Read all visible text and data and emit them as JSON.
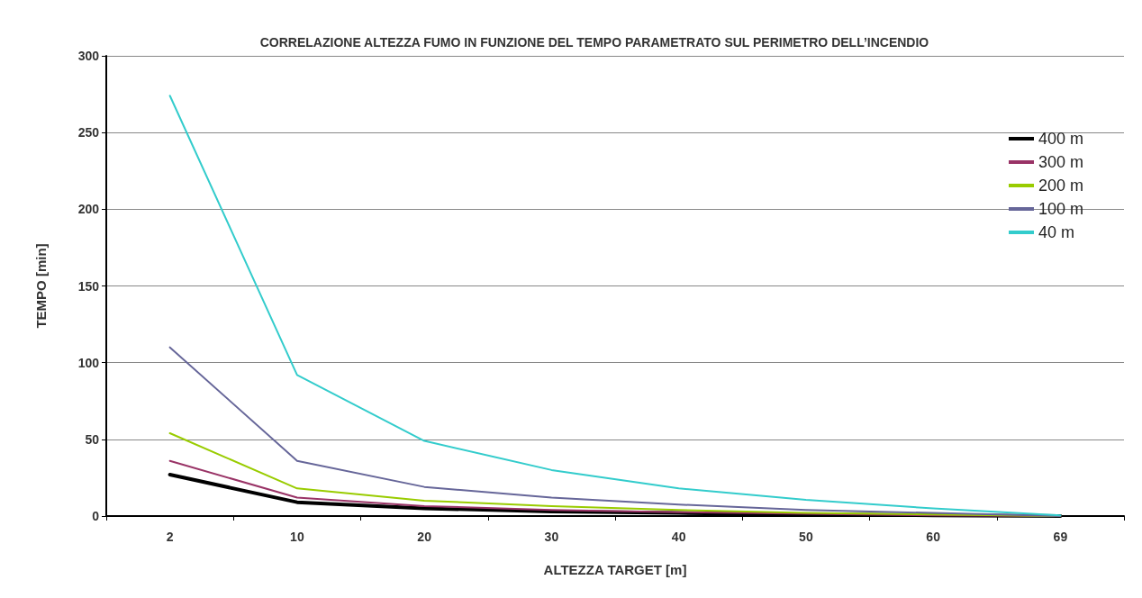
{
  "chart_data": {
    "type": "line",
    "title": "CORRELAZIONE ALTEZZA FUMO IN FUNZIONE DEL TEMPO PARAMETRATO SUL PERIMETRO DELL’INCENDIO",
    "xlabel": "ALTEZZA TARGET [m]",
    "ylabel": "TEMPO [min]",
    "categories": [
      "2",
      "10",
      "20",
      "30",
      "40",
      "50",
      "60",
      "69"
    ],
    "series": [
      {
        "name": "400 m",
        "color": "#000000",
        "values": [
          27,
          9,
          5,
          3,
          2,
          1,
          0.5,
          0
        ]
      },
      {
        "name": "300 m",
        "color": "#993366",
        "values": [
          36,
          12,
          6.5,
          4,
          2.5,
          1.5,
          0.5,
          0
        ]
      },
      {
        "name": "200 m",
        "color": "#99cc00",
        "values": [
          54,
          18,
          10,
          6.5,
          4,
          2,
          1,
          0
        ]
      },
      {
        "name": "100 m",
        "color": "#666699",
        "values": [
          110,
          36,
          19,
          12,
          7.5,
          4,
          2,
          0
        ]
      },
      {
        "name": "40 m",
        "color": "#33cccc",
        "values": [
          274,
          92,
          49,
          30,
          18,
          10.5,
          5,
          0.5
        ]
      }
    ],
    "ylim": [
      0,
      300
    ],
    "yticks": [
      0,
      50,
      100,
      150,
      200,
      250,
      300
    ],
    "grid": "y",
    "legend": "top right",
    "marker": "none",
    "line_style": "solid"
  }
}
